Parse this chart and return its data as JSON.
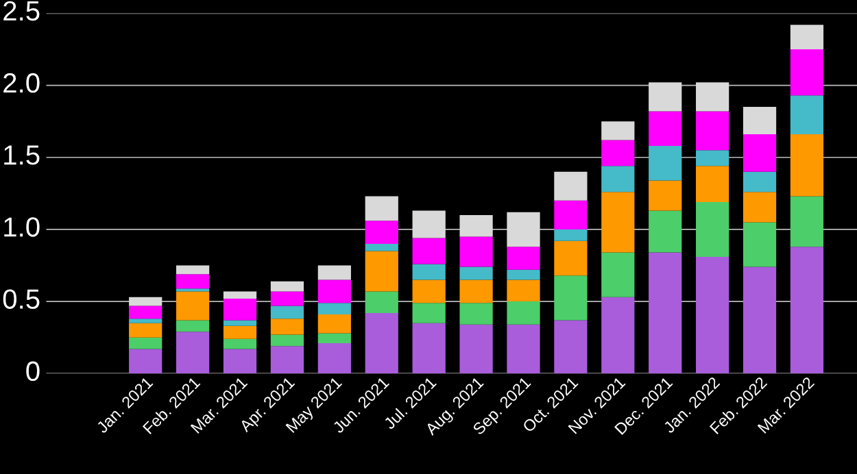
{
  "chart_data": {
    "type": "bar",
    "stacked": true,
    "categories": [
      "Jan. 2021",
      "Feb. 2021",
      "Mar. 2021",
      "Apr. 2021",
      "May 2021",
      "Jun. 2021",
      "Jul. 2021",
      "Aug. 2021",
      "Sep. 2021",
      "Oct. 2021",
      "Nov. 2021",
      "Dec. 2021",
      "Jan. 2022",
      "Feb. 2022",
      "Mar. 2022"
    ],
    "series": [
      {
        "color": "#a95ddb",
        "values": [
          0.17,
          0.29,
          0.17,
          0.19,
          0.21,
          0.42,
          0.35,
          0.34,
          0.34,
          0.37,
          0.53,
          0.84,
          0.81,
          0.74,
          0.88
        ]
      },
      {
        "color": "#4cce6a",
        "values": [
          0.08,
          0.08,
          0.07,
          0.08,
          0.07,
          0.15,
          0.14,
          0.15,
          0.16,
          0.31,
          0.31,
          0.29,
          0.38,
          0.31,
          0.35
        ]
      },
      {
        "color": "#ff9900",
        "values": [
          0.1,
          0.2,
          0.09,
          0.11,
          0.13,
          0.28,
          0.16,
          0.16,
          0.15,
          0.24,
          0.42,
          0.21,
          0.25,
          0.21,
          0.43
        ]
      },
      {
        "color": "#45bac8",
        "values": [
          0.03,
          0.02,
          0.04,
          0.09,
          0.08,
          0.05,
          0.11,
          0.09,
          0.07,
          0.08,
          0.18,
          0.24,
          0.11,
          0.14,
          0.27
        ]
      },
      {
        "color": "#ff00ff",
        "values": [
          0.09,
          0.1,
          0.15,
          0.1,
          0.16,
          0.16,
          0.18,
          0.21,
          0.16,
          0.2,
          0.18,
          0.24,
          0.27,
          0.26,
          0.32
        ]
      },
      {
        "color": "#d9d9d9",
        "values": [
          0.06,
          0.06,
          0.05,
          0.07,
          0.1,
          0.17,
          0.19,
          0.15,
          0.24,
          0.2,
          0.13,
          0.2,
          0.2,
          0.19,
          0.17
        ]
      }
    ],
    "ylim": [
      0,
      2.5
    ],
    "yticks": [
      0,
      0.5,
      {
        "value": 1,
        "label": "1.0"
      },
      1.5,
      {
        "value": 2,
        "label": "2.0"
      },
      2.5
    ],
    "grid": "y",
    "legend": false
  }
}
